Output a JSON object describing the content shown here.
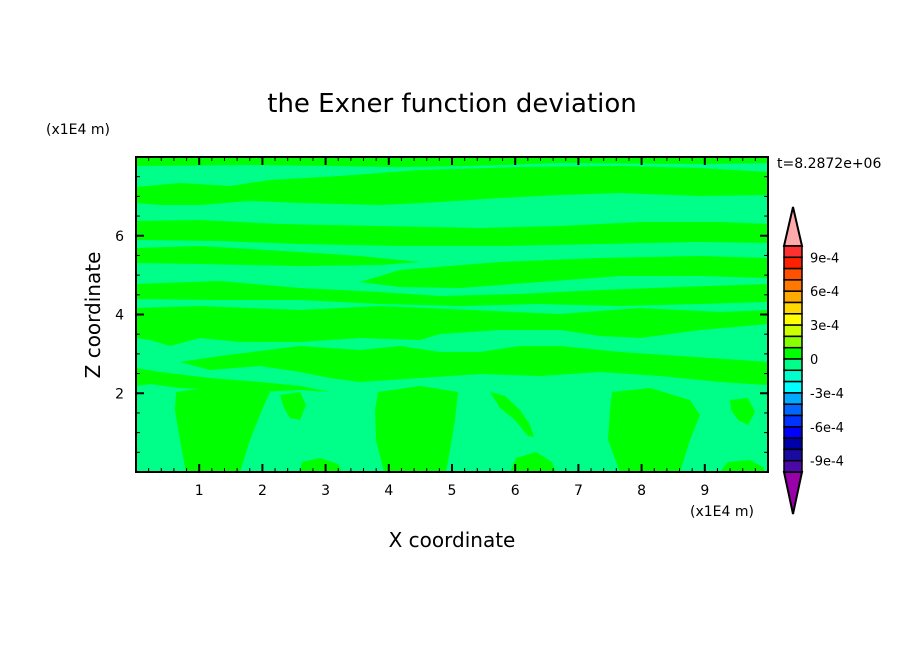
{
  "chart_data": {
    "type": "heatmap",
    "title": "the Exner function deviation",
    "xlabel": "X coordinate",
    "ylabel": "Z coordinate",
    "x_unit": "(x1E4 m)",
    "y_unit": "(x1E4 m)",
    "time_label": "t=8.2872e+06",
    "xlim": [
      0,
      10
    ],
    "ylim": [
      0,
      8
    ],
    "x_ticks": [
      1,
      2,
      3,
      4,
      5,
      6,
      7,
      8,
      9
    ],
    "x_tick_labels": [
      "1",
      "2",
      "3",
      "4",
      "5",
      "6",
      "7",
      "8",
      "9"
    ],
    "y_ticks": [
      2,
      4,
      6
    ],
    "y_tick_labels": [
      "2",
      "4",
      "6"
    ],
    "x_minor_step": 0.2,
    "y_minor_step": 0.5,
    "colorbar": {
      "levels_min": -0.001,
      "levels_max": 0.001,
      "level_step": 0.0001,
      "extend": "both",
      "tick_values": [
        0.0009,
        0.0006,
        0.0003,
        0,
        -0.0003,
        -0.0006,
        -0.0009
      ],
      "tick_labels": [
        "9e-4",
        "6e-4",
        "3e-4",
        "0",
        "-3e-4",
        "-6e-4",
        "-9e-4"
      ],
      "colors_top_to_bottom": [
        "#ff3030",
        "#ff2000",
        "#ff5000",
        "#ff7800",
        "#ffaa00",
        "#ffd800",
        "#ffff00",
        "#ccff00",
        "#88ff00",
        "#00ff00",
        "#00ff88",
        "#00ffcc",
        "#00ffff",
        "#00aaff",
        "#0066ff",
        "#0033ff",
        "#0000ff",
        "#0000aa",
        "#1a0aa0",
        "#4b0aa8"
      ],
      "over_color": "#ffaaaa",
      "under_color": "#9900aa"
    },
    "field_colors": {
      "range_0_to_1e-4": "#00ff00",
      "range_-1e-4_to_0": "#00ff88"
    },
    "grid": false
  }
}
